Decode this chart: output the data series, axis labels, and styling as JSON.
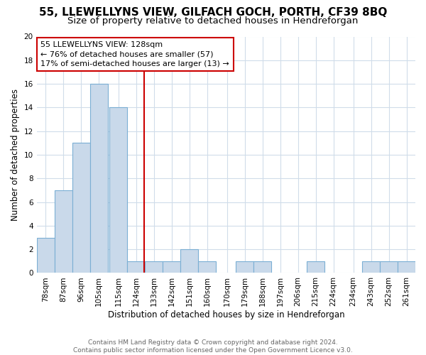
{
  "title": "55, LLEWELLYNS VIEW, GILFACH GOCH, PORTH, CF39 8BQ",
  "subtitle": "Size of property relative to detached houses in Hendreforgan",
  "xlabel": "Distribution of detached houses by size in Hendreforgan",
  "ylabel": "Number of detached properties",
  "bin_labels": [
    "78sqm",
    "87sqm",
    "96sqm",
    "105sqm",
    "115sqm",
    "124sqm",
    "133sqm",
    "142sqm",
    "151sqm",
    "160sqm",
    "170sqm",
    "179sqm",
    "188sqm",
    "197sqm",
    "206sqm",
    "215sqm",
    "224sqm",
    "234sqm",
    "243sqm",
    "252sqm",
    "261sqm"
  ],
  "counts": [
    3,
    7,
    11,
    16,
    14,
    1,
    1,
    1,
    2,
    1,
    0,
    1,
    1,
    0,
    0,
    1,
    0,
    0,
    1,
    1,
    1
  ],
  "bin_width": 9,
  "bin_starts": [
    74,
    83,
    92,
    101,
    111,
    120,
    129,
    138,
    147,
    156,
    166,
    175,
    184,
    193,
    202,
    211,
    220,
    230,
    239,
    248,
    257
  ],
  "property_size": 128.5,
  "bar_color": "#c9d9ea",
  "bar_edge_color": "#7bafd4",
  "vline_color": "#cc0000",
  "annotation_text": "55 LLEWELLYNS VIEW: 128sqm\n← 76% of detached houses are smaller (57)\n17% of semi-detached houses are larger (13) →",
  "annotation_box_color": "#ffffff",
  "annotation_box_edge_color": "#cc0000",
  "ylim": [
    0,
    20
  ],
  "yticks": [
    0,
    2,
    4,
    6,
    8,
    10,
    12,
    14,
    16,
    18,
    20
  ],
  "title_fontsize": 11,
  "subtitle_fontsize": 9.5,
  "footer_text": "Contains HM Land Registry data © Crown copyright and database right 2024.\nContains public sector information licensed under the Open Government Licence v3.0.",
  "background_color": "#ffffff",
  "grid_color": "#d0dcea"
}
